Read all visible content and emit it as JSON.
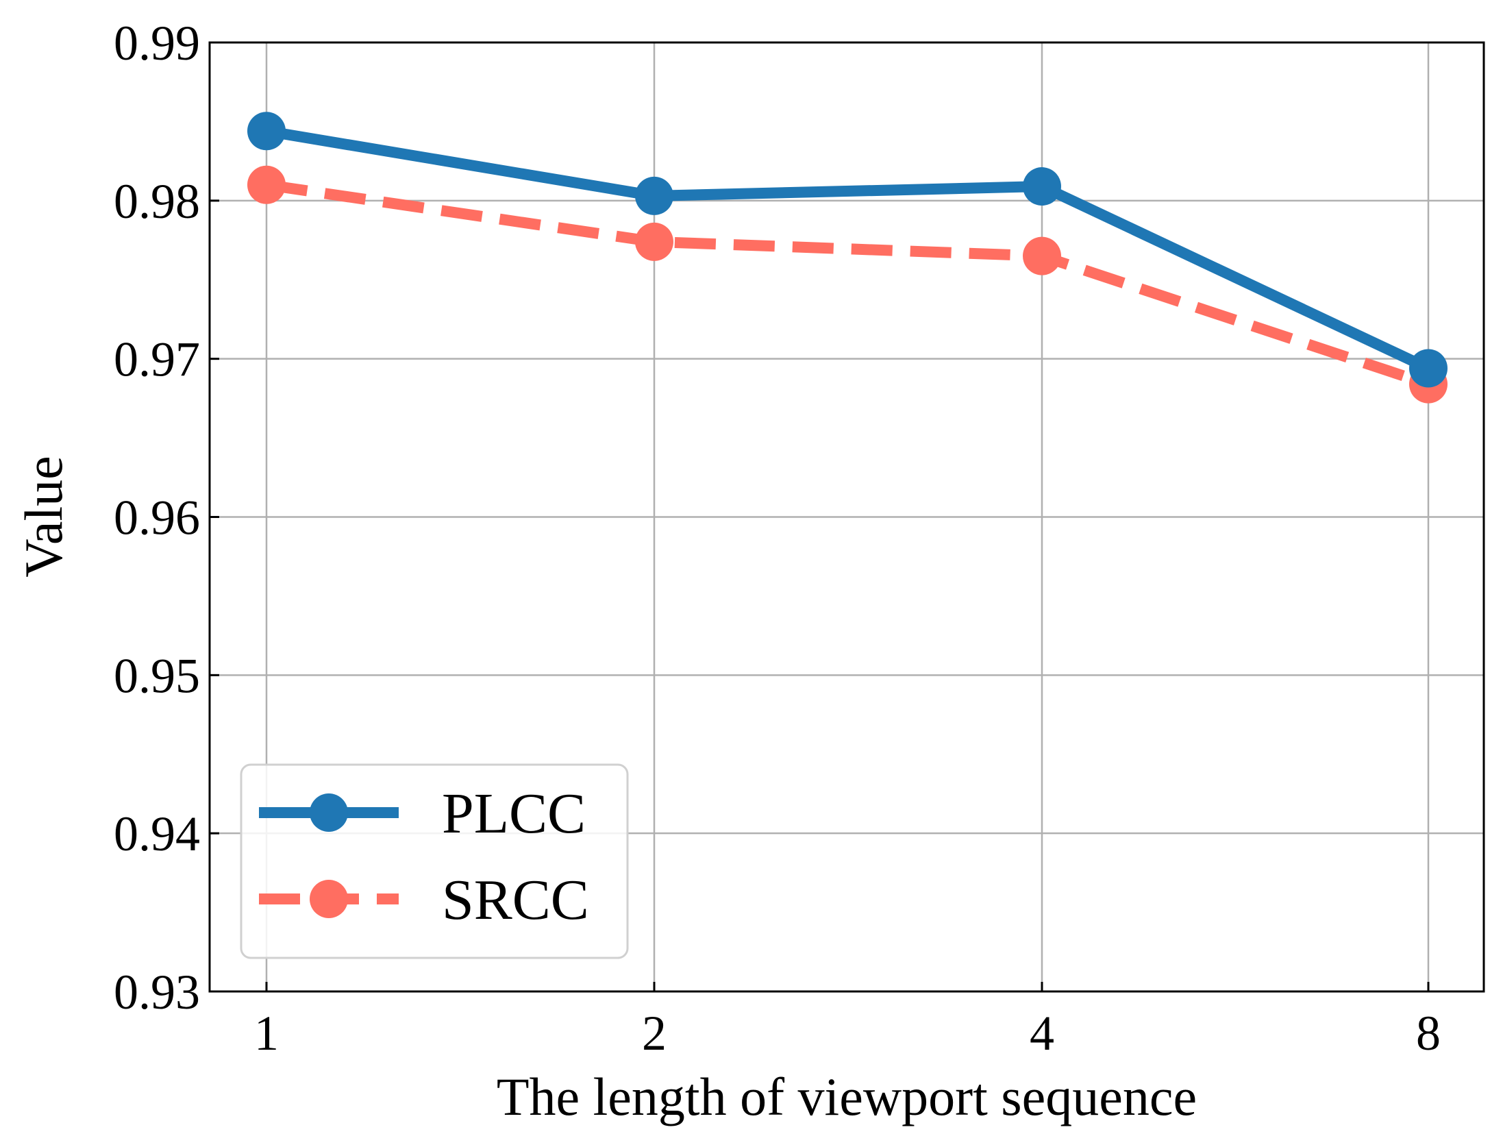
{
  "chart_data": {
    "type": "line",
    "title": "",
    "xlabel": "The length of viewport sequence",
    "ylabel": "Value",
    "categories": [
      "1",
      "2",
      "4",
      "8"
    ],
    "y_ticks": [
      "0.93",
      "0.94",
      "0.95",
      "0.96",
      "0.97",
      "0.98",
      "0.99"
    ],
    "ylim": [
      0.93,
      0.99
    ],
    "grid": true,
    "legend_position": "bottom-left",
    "series": [
      {
        "name": "PLCC",
        "values": [
          0.9844,
          0.9803,
          0.9809,
          0.9694
        ],
        "color": "#1f77b4",
        "line_style": "solid",
        "marker": "circle"
      },
      {
        "name": "SRCC",
        "values": [
          0.981,
          0.9774,
          0.9765,
          0.9684
        ],
        "color": "#ff6e61",
        "line_style": "dashed",
        "marker": "circle"
      }
    ]
  }
}
